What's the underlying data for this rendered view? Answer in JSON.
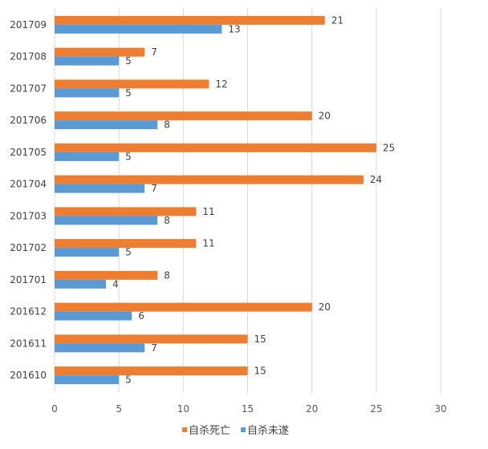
{
  "chart_data": {
    "type": "bar",
    "orientation": "horizontal",
    "categories": [
      "201709",
      "201708",
      "201707",
      "201706",
      "201705",
      "201704",
      "201703",
      "201702",
      "201701",
      "201612",
      "201611",
      "201610"
    ],
    "series": [
      {
        "name": "自杀死亡",
        "color": "#ed7d31",
        "values": [
          21,
          7,
          12,
          20,
          25,
          24,
          11,
          11,
          8,
          20,
          15,
          15
        ]
      },
      {
        "name": "自杀未遂",
        "color": "#5b9bd5",
        "values": [
          13,
          5,
          5,
          8,
          5,
          7,
          8,
          5,
          4,
          6,
          7,
          5
        ]
      }
    ],
    "xlim": [
      0,
      30
    ],
    "xticks": [
      0,
      5,
      10,
      15,
      20,
      25,
      30
    ],
    "grid": true,
    "legend_position": "bottom",
    "title": "",
    "xlabel": "",
    "ylabel": ""
  }
}
